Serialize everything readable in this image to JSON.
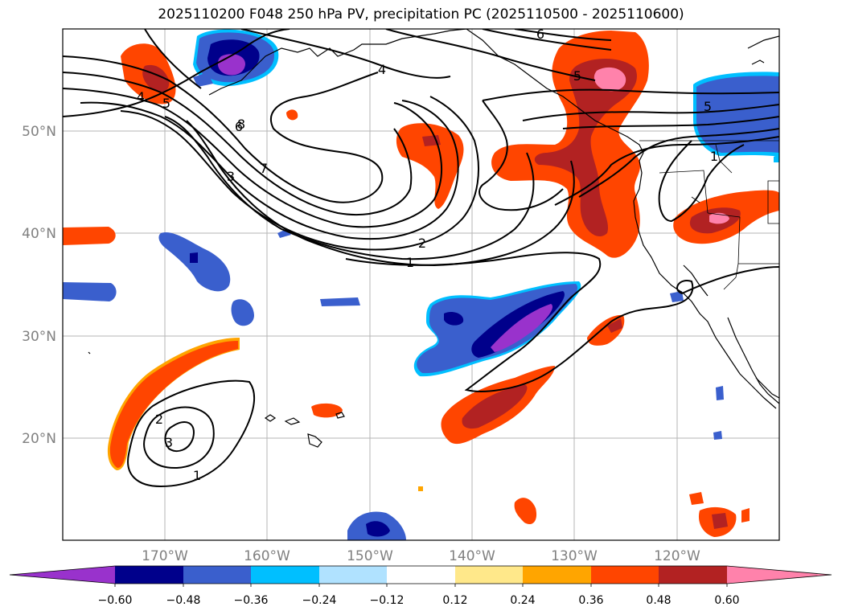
{
  "title": "2025110200 F048 250 hPa PV, precipitation PC (2025110500 - 2025110600)",
  "map": {
    "lat_labels": [
      "50°N",
      "40°N",
      "30°N",
      "20°N"
    ],
    "lon_labels": [
      "170°W",
      "160°W",
      "150°W",
      "140°W",
      "130°W",
      "120°W"
    ],
    "axis_label_color": "#808080",
    "contour_labels": [
      "4",
      "5",
      "6",
      "4",
      "5",
      "6",
      "7",
      "8",
      "3",
      "2",
      "1",
      "1",
      "5",
      "2",
      "3",
      "1"
    ]
  },
  "colorbar": {
    "colors": [
      "#9932cc",
      "#00008b",
      "#3a5fcd",
      "#00bfff",
      "#b0e2ff",
      "#ffffff",
      "#ffe88a",
      "#ffa500",
      "#ff4500",
      "#b22222",
      "#ff82ab"
    ],
    "tick_labels": [
      "−0.60",
      "−0.48",
      "−0.36",
      "−0.24",
      "−0.12",
      "0.12",
      "0.24",
      "0.36",
      "0.48",
      "0.60"
    ]
  }
}
